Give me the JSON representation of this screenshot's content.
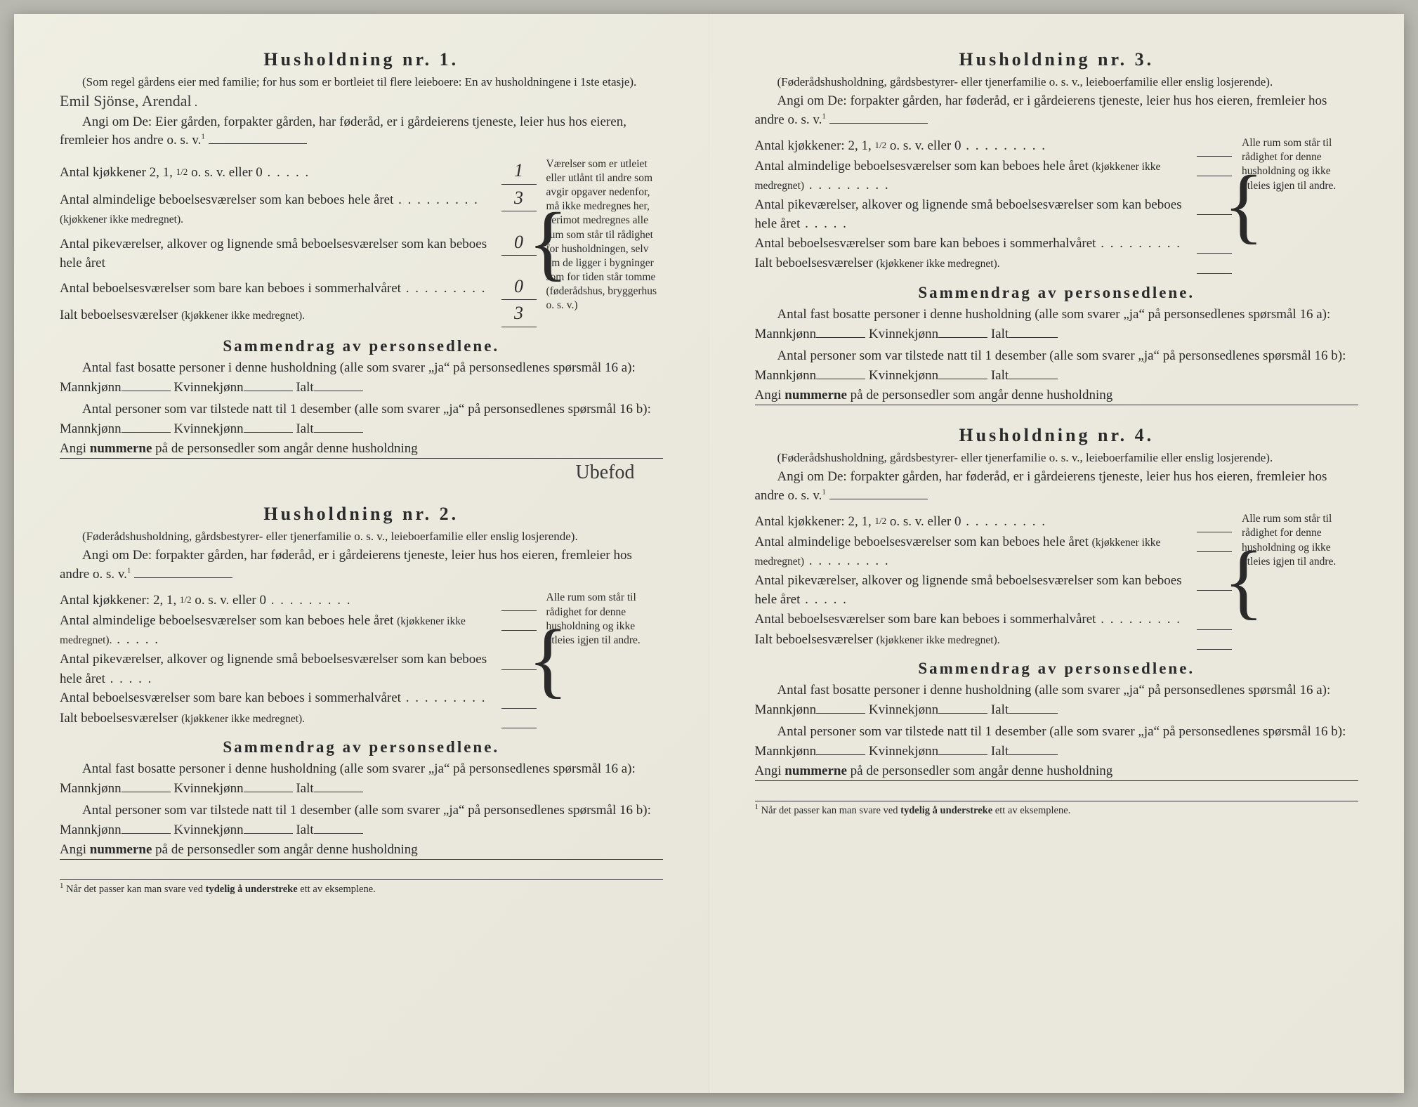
{
  "colors": {
    "paper": "#ebe9dd",
    "ink": "#2a2a2a",
    "handwriting": "#3a3a3a"
  },
  "households": [
    {
      "title": "Husholdning nr. 1.",
      "subhead": "(Som regel gårdens eier med familie; for hus som er bortleiet til flere leieboere: En av husholdningene i 1ste etasje).",
      "handwritten_name": "Emil Sjönse, Arendal",
      "angi_pre": "Angi om De:",
      "angi_options": "Eier gården, forpakter gården, har føderåd, er i gårdeierens tjeneste, leier hus hos eieren, fremleier hos andre o. s. v.",
      "angi_sup": "1",
      "rooms": {
        "kjokken_label": "Antal kjøkkener 2, 1, ",
        "kjokken_half": "1/2",
        "kjokken_tail": " o. s. v. eller 0",
        "kjokken_val": "1",
        "almind_label": "Antal almindelige beboelsesværelser som kan beboes hele året",
        "almind_val": "3",
        "almind_sub": "(kjøkkener ikke medregnet).",
        "pike_label": "Antal pikeværelser, alkover og lignende små beboelsesværelser som kan beboes hele året",
        "pike_val": "0",
        "sommer_label": "Antal beboelsesværelser som bare kan beboes i sommerhalvåret",
        "sommer_val": "0",
        "ialt_label": "Ialt beboelsesværelser ",
        "ialt_sub": "(kjøkkener ikke medregnet).",
        "ialt_val": "3"
      },
      "brace_note": "Værelser som er utleiet eller utlånt til andre som avgir opgaver nedenfor, må ikke medregnes her, derimot medregnes alle rum som står til rådighet for husholdningen, selv om de ligger i bygninger som for tiden står tomme (føderådshus, bryggerhus o. s. v.)",
      "samm_title": "Sammendrag av personsedlene.",
      "fast_text": "Antal fast bosatte personer i denne husholdning (alle som svarer „ja“ på personsedlenes spørsmål 16 a):",
      "tilstede_text": "Antal personer som var tilstede natt til 1 desember (alle som svarer „ja“ på personsedlenes spørsmål 16 b):",
      "mann": "Mannkjønn",
      "kvinne": "Kvinnekjønn",
      "ialt": "Ialt",
      "angi_num": "Angi ",
      "angi_num_bold": "nummerne",
      "angi_num_tail": " på de personsedler som angår denne husholdning",
      "signature": "Ubefod"
    },
    {
      "title": "Husholdning nr. 2.",
      "subhead": "(Føderådshusholdning, gårdsbestyrer- eller tjenerfamilie o. s. v., leieboerfamilie eller enslig losjerende).",
      "angi_pre": "Angi om De:",
      "angi_options": "forpakter gården, har føderåd, er i gårdeierens tjeneste, leier hus hos eieren, fremleier hos andre o. s. v.",
      "angi_sup": "1",
      "rooms": {
        "kjokken_label": "Antal kjøkkener: 2, 1, ",
        "kjokken_half": "1/2",
        "kjokken_tail": " o. s. v. eller 0",
        "almind_label": "Antal almindelige beboelsesværelser som kan beboes hele året ",
        "almind_sub": "(kjøkkener ikke medregnet).",
        "pike_label": "Antal pikeværelser, alkover og lignende små beboelsesværelser som kan beboes hele året",
        "sommer_label": "Antal beboelsesværelser som bare kan beboes i sommerhalvåret",
        "ialt_label": "Ialt beboelsesværelser ",
        "ialt_sub": "(kjøkkener ikke medregnet)."
      },
      "brace_note": "Alle rum som står til rådighet for denne husholdning og ikke utleies igjen til andre.",
      "samm_title": "Sammendrag av personsedlene.",
      "fast_text": "Antal fast bosatte personer i denne husholdning (alle som svarer „ja“ på personsedlenes spørsmål 16 a):",
      "tilstede_text": "Antal personer som var tilstede natt til 1 desember (alle som svarer „ja“ på personsedlenes spørsmål 16 b):",
      "mann": "Mannkjønn",
      "kvinne": "Kvinnekjønn",
      "ialt": "Ialt",
      "angi_num": "Angi ",
      "angi_num_bold": "nummerne",
      "angi_num_tail": " på de personsedler som angår denne husholdning"
    },
    {
      "title": "Husholdning nr. 3.",
      "subhead": "(Føderådshusholdning, gårdsbestyrer- eller tjenerfamilie o. s. v., leieboerfamilie eller enslig losjerende).",
      "angi_pre": "Angi om De:",
      "angi_options": "forpakter gården, har føderåd, er i gårdeierens tjeneste, leier hus hos eieren, fremleier hos andre o. s. v.",
      "angi_sup": "1",
      "rooms": {
        "kjokken_label": "Antal kjøkkener: 2, 1, ",
        "kjokken_half": "1/2",
        "kjokken_tail": " o. s. v. eller 0",
        "almind_label": "Antal almindelige beboelsesværelser som kan beboes hele året ",
        "almind_sub": "(kjøkkener ikke medregnet)",
        "pike_label": "Antal pikeværelser, alkover og lignende små beboelsesværelser som kan beboes hele året",
        "sommer_label": "Antal beboelsesværelser som bare kan beboes i sommerhalvåret",
        "ialt_label": "Ialt beboelsesværelser ",
        "ialt_sub": "(kjøkkener ikke medregnet)."
      },
      "brace_note": "Alle rum som står til rådighet for denne husholdning og ikke utleies igjen til andre.",
      "samm_title": "Sammendrag av personsedlene.",
      "fast_text": "Antal fast bosatte personer i denne husholdning (alle som svarer „ja“ på personsedlenes spørsmål 16 a):",
      "tilstede_text": "Antal personer som var tilstede natt til 1 desember (alle som svarer „ja“ på personsedlenes spørsmål 16 b):",
      "mann": "Mannkjønn",
      "kvinne": "Kvinnekjønn",
      "ialt": "Ialt",
      "angi_num": "Angi ",
      "angi_num_bold": "nummerne",
      "angi_num_tail": " på de personsedler som angår denne husholdning"
    },
    {
      "title": "Husholdning nr. 4.",
      "subhead": "(Føderådshusholdning, gårdsbestyrer- eller tjenerfamilie o. s. v., leieboerfamilie eller enslig losjerende).",
      "angi_pre": "Angi om De:",
      "angi_options": "forpakter gården, har føderåd, er i gårdeierens tjeneste, leier hus hos eieren, fremleier hos andre o. s. v.",
      "angi_sup": "1",
      "rooms": {
        "kjokken_label": "Antal kjøkkener: 2, 1, ",
        "kjokken_half": "1/2",
        "kjokken_tail": " o. s. v. eller 0",
        "almind_label": "Antal almindelige beboelsesværelser som kan beboes hele året ",
        "almind_sub": "(kjøkkener ikke medregnet)",
        "pike_label": "Antal pikeværelser, alkover og lignende små beboelsesværelser som kan beboes hele året",
        "sommer_label": "Antal beboelsesværelser som bare kan beboes i sommerhalvåret",
        "ialt_label": "Ialt beboelsesværelser ",
        "ialt_sub": "(kjøkkener ikke medregnet)."
      },
      "brace_note": "Alle rum som står til rådighet for denne husholdning og ikke utleies igjen til andre.",
      "samm_title": "Sammendrag av personsedlene.",
      "fast_text": "Antal fast bosatte personer i denne husholdning (alle som svarer „ja“ på personsedlenes spørsmål 16 a):",
      "tilstede_text": "Antal personer som var tilstede natt til 1 desember (alle som svarer „ja“ på personsedlenes spørsmål 16 b):",
      "mann": "Mannkjønn",
      "kvinne": "Kvinnekjønn",
      "ialt": "Ialt",
      "angi_num": "Angi ",
      "angi_num_bold": "nummerne",
      "angi_num_tail": " på de personsedler som angår denne husholdning"
    }
  ],
  "footnote": {
    "sup": "1",
    "text": " Når det passer kan man svare ved ",
    "bold": "tydelig å understreke",
    "tail": " ett av eksemplene."
  }
}
